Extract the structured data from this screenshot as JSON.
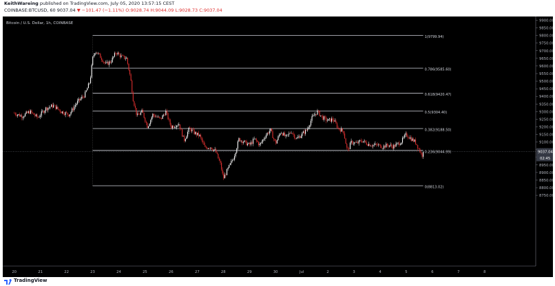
{
  "header": {
    "author": "KeithWareing",
    "published": "published on TradingView.com, July 05, 2020 13:57:15 CEST",
    "symbol": "COINBASE:BTCUSD, 60",
    "last": "9037.04",
    "change_arrow": "▼",
    "change": "−101.47 (−1.11%)",
    "ohlc": "O:9028.74 H:9044.09 L:9028.73 C:9037.04"
  },
  "footer": {
    "brand": "TradingView",
    "logo_icon": "tradingview-logo-icon"
  },
  "chart_data": {
    "type": "candlestick",
    "title": "Bitcoin / U.S. Dollar, 1h, COINBASE",
    "yticks": [
      "9900.00",
      "9850.00",
      "9800.00",
      "9750.00",
      "9700.00",
      "9650.00",
      "9600.00",
      "9550.00",
      "9500.00",
      "9450.00",
      "9400.00",
      "9350.00",
      "9300.00",
      "9250.00",
      "9200.00",
      "9150.00",
      "9100.00",
      "9050.00",
      "9000.00",
      "8950.00",
      "8900.00",
      "8850.00",
      "8800.00",
      "8750.00"
    ],
    "xticks": [
      "20",
      "21",
      "22",
      "23",
      "24",
      "25",
      "26",
      "27",
      "28",
      "29",
      "30",
      "Jul",
      "2",
      "3",
      "4",
      "5",
      "6",
      "7",
      "8"
    ],
    "ylim": [
      8725,
      9925
    ],
    "last_price_label": "9037.04",
    "last_price": 9037.04,
    "countdown_label": "02:45",
    "colors": {
      "up": "#ffffff",
      "down": "#e0302f",
      "fib": "#d1d4dc",
      "axis_text": "#b2b5be",
      "background": "#000000"
    },
    "fib_levels": [
      {
        "label": "1(9799.94)",
        "price": 9799.94
      },
      {
        "label": "0.786(9585.60)",
        "price": 9585.6
      },
      {
        "label": "0.618(9420.47)",
        "price": 9420.47
      },
      {
        "label": "0.5(9304.40)",
        "price": 9304.4
      },
      {
        "label": "0.382(9188.50)",
        "price": 9188.5
      },
      {
        "label": "0.236(9044.99)",
        "price": 9044.99
      },
      {
        "label": "0(8813.02)",
        "price": 8813.02
      }
    ],
    "fib_start_day": 3.0,
    "fib_end_day": 15.65,
    "price_path": [
      [
        0.0,
        9290
      ],
      [
        0.3,
        9270
      ],
      [
        0.6,
        9300
      ],
      [
        0.9,
        9260
      ],
      [
        1.2,
        9320
      ],
      [
        1.5,
        9340
      ],
      [
        1.8,
        9300
      ],
      [
        2.1,
        9280
      ],
      [
        2.4,
        9360
      ],
      [
        2.7,
        9410
      ],
      [
        2.9,
        9500
      ],
      [
        3.0,
        9650
      ],
      [
        3.1,
        9700
      ],
      [
        3.3,
        9660
      ],
      [
        3.5,
        9610
      ],
      [
        3.7,
        9630
      ],
      [
        3.9,
        9690
      ],
      [
        4.1,
        9660
      ],
      [
        4.3,
        9650
      ],
      [
        4.45,
        9520
      ],
      [
        4.55,
        9380
      ],
      [
        4.7,
        9270
      ],
      [
        4.9,
        9300
      ],
      [
        5.1,
        9200
      ],
      [
        5.3,
        9280
      ],
      [
        5.6,
        9250
      ],
      [
        5.8,
        9300
      ],
      [
        6.0,
        9200
      ],
      [
        6.3,
        9220
      ],
      [
        6.5,
        9110
      ],
      [
        6.7,
        9190
      ],
      [
        6.9,
        9160
      ],
      [
        7.1,
        9140
      ],
      [
        7.3,
        9060
      ],
      [
        7.5,
        9070
      ],
      [
        7.7,
        9040
      ],
      [
        7.9,
        8950
      ],
      [
        8.0,
        8860
      ],
      [
        8.2,
        8930
      ],
      [
        8.4,
        9000
      ],
      [
        8.6,
        9120
      ],
      [
        8.8,
        9100
      ],
      [
        9.0,
        9080
      ],
      [
        9.2,
        9120
      ],
      [
        9.4,
        9080
      ],
      [
        9.6,
        9140
      ],
      [
        9.8,
        9180
      ],
      [
        10.0,
        9090
      ],
      [
        10.2,
        9170
      ],
      [
        10.4,
        9130
      ],
      [
        10.6,
        9170
      ],
      [
        10.8,
        9120
      ],
      [
        11.0,
        9150
      ],
      [
        11.2,
        9180
      ],
      [
        11.4,
        9260
      ],
      [
        11.6,
        9300
      ],
      [
        11.8,
        9260
      ],
      [
        12.0,
        9240
      ],
      [
        12.2,
        9250
      ],
      [
        12.4,
        9190
      ],
      [
        12.6,
        9170
      ],
      [
        12.75,
        9040
      ],
      [
        12.9,
        9100
      ],
      [
        13.1,
        9090
      ],
      [
        13.3,
        9110
      ],
      [
        13.5,
        9090
      ],
      [
        13.7,
        9080
      ],
      [
        13.9,
        9080
      ],
      [
        14.1,
        9070
      ],
      [
        14.3,
        9080
      ],
      [
        14.5,
        9070
      ],
      [
        14.8,
        9100
      ],
      [
        15.0,
        9150
      ],
      [
        15.2,
        9120
      ],
      [
        15.35,
        9100
      ],
      [
        15.5,
        9050
      ],
      [
        15.6,
        9010
      ],
      [
        15.65,
        9037.04
      ]
    ]
  }
}
